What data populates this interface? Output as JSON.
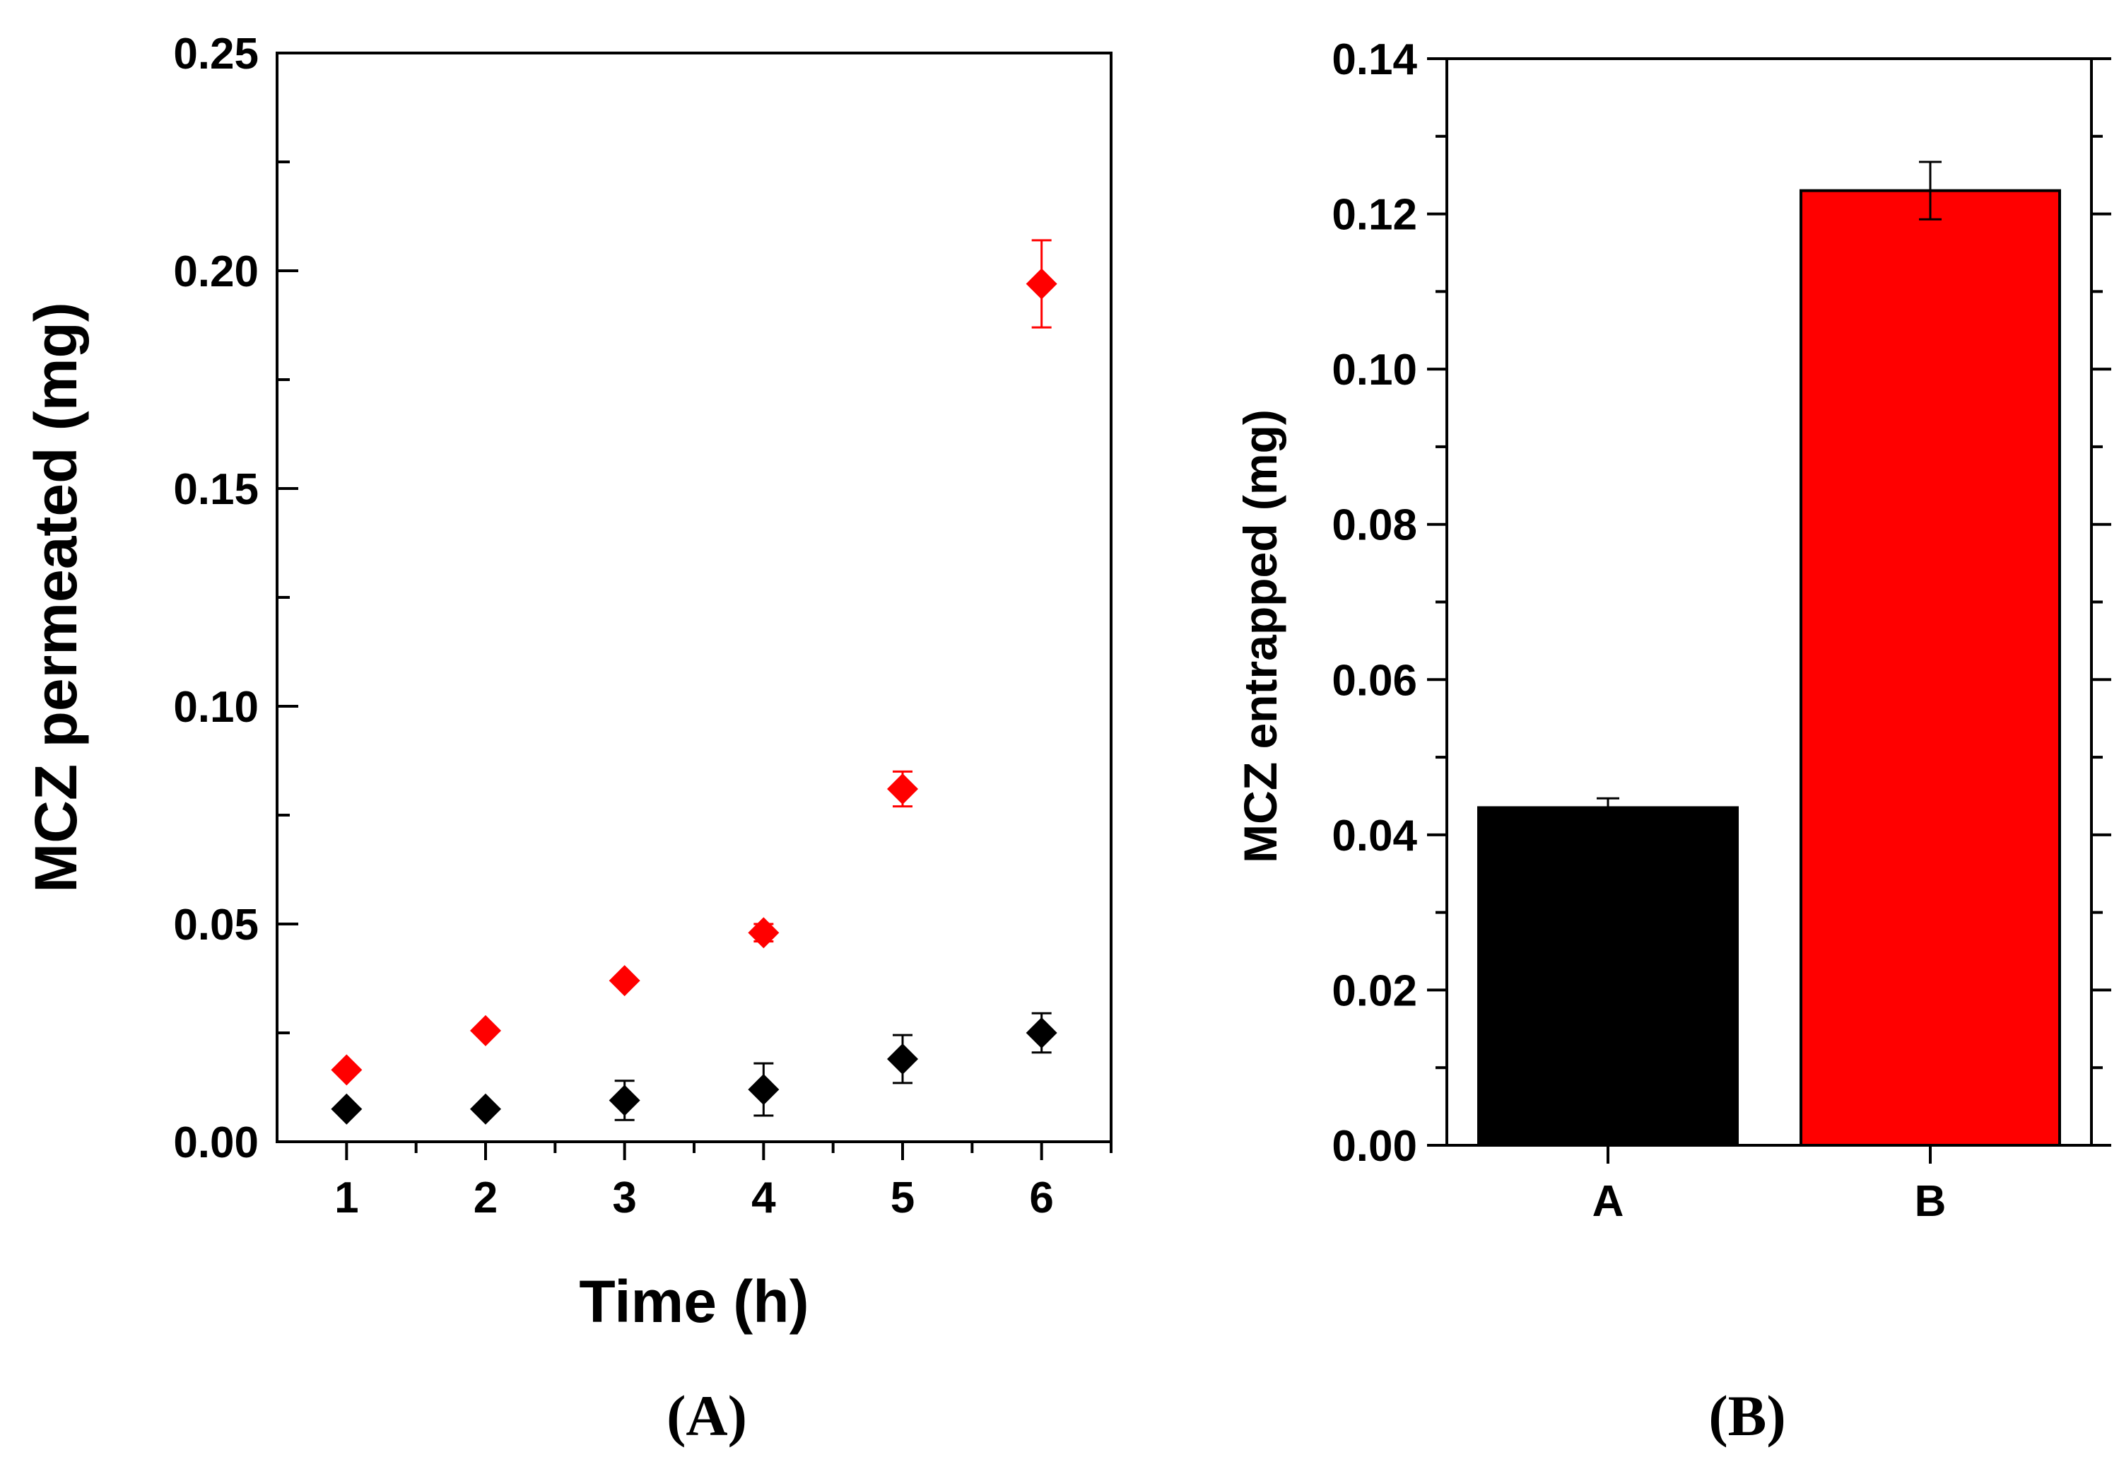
{
  "chart_data": [
    {
      "type": "scatter",
      "panel_label": "(A)",
      "xlabel": "Time (h)",
      "ylabel": "MCZ permeated (mg)",
      "xlim": [
        0.5,
        6.5
      ],
      "ylim": [
        0,
        0.25
      ],
      "x_ticks": [
        "1",
        "2",
        "3",
        "4",
        "5",
        "6"
      ],
      "y_ticks": [
        "0.00",
        "0.05",
        "0.10",
        "0.15",
        "0.20",
        "0.25"
      ],
      "x_minor_step": 0.5,
      "y_minor_step": 0.025,
      "series": [
        {
          "name": "red",
          "color": "#ff0000",
          "marker": "diamond",
          "x": [
            1,
            2,
            3,
            4,
            5,
            6
          ],
          "y": [
            0.0165,
            0.0255,
            0.037,
            0.048,
            0.081,
            0.197
          ],
          "err": [
            0.0005,
            0.0005,
            0.0005,
            0.002,
            0.004,
            0.01
          ]
        },
        {
          "name": "black",
          "color": "#000000",
          "marker": "diamond",
          "x": [
            1,
            2,
            3,
            4,
            5,
            6
          ],
          "y": [
            0.0075,
            0.0075,
            0.0095,
            0.012,
            0.019,
            0.025
          ],
          "err": [
            0.0005,
            0.0005,
            0.0045,
            0.006,
            0.0055,
            0.0045
          ]
        }
      ]
    },
    {
      "type": "bar",
      "panel_label": "(B)",
      "xlabel": "",
      "ylabel": "MCZ entrapped (mg)",
      "ylim": [
        0,
        0.14
      ],
      "categories": [
        "A",
        "B"
      ],
      "values": [
        0.0435,
        0.123
      ],
      "err": [
        0.0012,
        0.0037
      ],
      "colors": [
        "#000000",
        "#ff0000"
      ],
      "y_ticks": [
        "0.00",
        "0.02",
        "0.04",
        "0.06",
        "0.08",
        "0.10",
        "0.12",
        "0.14"
      ],
      "y_minor_step": 0.01
    }
  ]
}
